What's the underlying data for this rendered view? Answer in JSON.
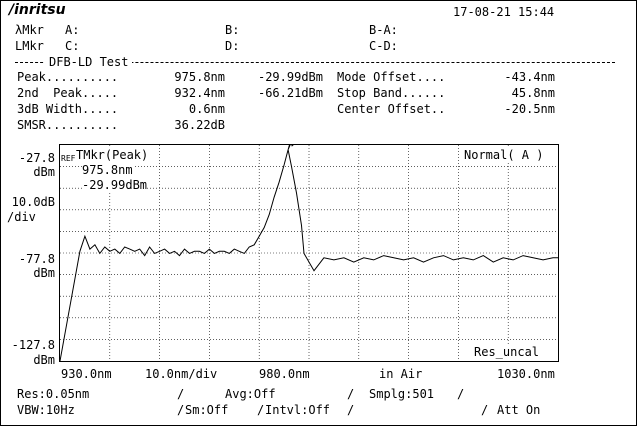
{
  "header": {
    "logo": "/inritsu",
    "datetime": "17-08-21 15:44"
  },
  "markers": {
    "lambda_mkr_label": "λMkr",
    "l_mkr_label": "LMkr",
    "a": "A:",
    "b": "B:",
    "b_minus_a": "B-A:",
    "c": "C:",
    "d": "D:",
    "c_minus_d": "C-D:"
  },
  "test_title": "DFB-LD Test",
  "results": {
    "peak_label": "Peak..........",
    "peak_wl": "975.8nm",
    "peak_lvl": "-29.99dBm",
    "second_peak_label": "2nd  Peak.....",
    "second_peak_wl": "932.4nm",
    "second_peak_lvl": "-66.21dBm",
    "width_label": "3dB Width.....",
    "width_value": "0.6nm",
    "smsr_label": "SMSR..........",
    "smsr_value": "36.22dB",
    "mode_offset_label": "Mode Offset....",
    "mode_offset_value": "-43.4nm",
    "stop_band_label": "Stop Band......",
    "stop_band_value": "45.8nm",
    "center_offset_label": "Center Offset..",
    "center_offset_value": "-20.5nm"
  },
  "axis": {
    "ref_level": "-27.8",
    "ref_unit": "dBm",
    "scale": "10.0dB",
    "scale_unit": "/div",
    "mid_level": "-77.8",
    "mid_unit": "dBm",
    "bottom_level": "-127.8",
    "bottom_unit": "dBm",
    "x_start": "930.0nm",
    "x_div": "10.0nm/div",
    "x_center": "980.0nm",
    "medium": "in Air",
    "x_end": "1030.0nm"
  },
  "plot": {
    "ref_tag": "REF",
    "tmkr_label": "TMkr(Peak)",
    "tmkr_wl": "975.8nm",
    "tmkr_lvl": "-29.99dBm",
    "mode_label": "Normal( A )",
    "res_uncal": "Res_uncal"
  },
  "settings": {
    "res": "Res:0.05nm",
    "avg": "Avg:Off",
    "smplg": "Smplg:501",
    "vbw": "VBW:10Hz",
    "sm": "Sm:Off",
    "intvl": "Intvl:Off",
    "att": "Att On",
    "sep": "/"
  },
  "chart_data": {
    "type": "line",
    "xlim": [
      930.0,
      1030.0
    ],
    "ylim": [
      -127.8,
      -27.8
    ],
    "ylabel": "dBm",
    "grid": true,
    "peak": {
      "x": 975.8,
      "y": -29.99
    },
    "series": [
      {
        "x": [
          930.0,
          934.0,
          935.0,
          936.0,
          937.0,
          938.0,
          939.0,
          940.0,
          941.0,
          942.0,
          943.0,
          944.0,
          945.0,
          946.0,
          947.0,
          948.0,
          949.0,
          950.0,
          951.0,
          952.0,
          953.0,
          954.0,
          955.0,
          956.0,
          957.0,
          958.0,
          959.0,
          960.0,
          961.0,
          962.0,
          963.0,
          964.0,
          965.0,
          966.0,
          967.0,
          968.0,
          969.0,
          970.0,
          971.0,
          972.0,
          973.0,
          974.0,
          975.0,
          975.8,
          976.5,
          977.5,
          978.5,
          979.0,
          981.0,
          983.0,
          985.0,
          987.0,
          989.0,
          991.0,
          993.0,
          995.0,
          997.0,
          999.0,
          1001.0,
          1003.0,
          1005.0,
          1007.0,
          1009.0,
          1011.0,
          1013.0,
          1015.0,
          1017.0,
          1019.0,
          1021.0,
          1023.0,
          1025.0,
          1027.0,
          1029.0,
          1030.0
        ],
        "y": [
          -127.8,
          -77.0,
          -70.0,
          -76.0,
          -74.0,
          -78.0,
          -75.0,
          -77.0,
          -76.0,
          -78.0,
          -75.0,
          -76.0,
          -77.0,
          -76.0,
          -79.0,
          -75.0,
          -78.0,
          -77.0,
          -76.0,
          -78.0,
          -77.0,
          -79.0,
          -76.0,
          -78.0,
          -77.0,
          -77.0,
          -78.0,
          -76.0,
          -78.0,
          -77.0,
          -77.0,
          -78.0,
          -76.0,
          -77.0,
          -78.0,
          -75.0,
          -74.0,
          -70.0,
          -66.0,
          -60.0,
          -52.0,
          -45.0,
          -37.0,
          -29.99,
          -38.0,
          -50.0,
          -65.0,
          -78.0,
          -86.0,
          -80.0,
          -81.0,
          -80.0,
          -82.0,
          -80.0,
          -81.0,
          -79.0,
          -80.0,
          -81.0,
          -80.0,
          -82.0,
          -80.0,
          -79.0,
          -81.0,
          -80.0,
          -81.0,
          -79.0,
          -82.0,
          -80.0,
          -81.0,
          -79.0,
          -80.0,
          -81.0,
          -80.0,
          -80.0
        ]
      }
    ]
  }
}
